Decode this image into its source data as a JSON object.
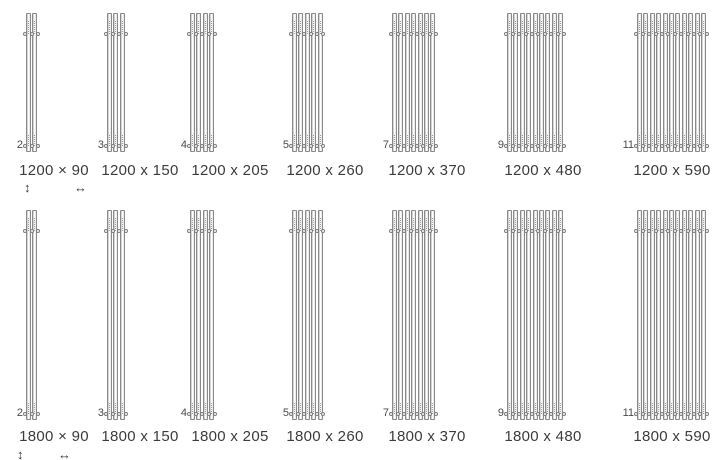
{
  "diagram": {
    "rows": [
      {
        "height_mm": "1200",
        "dimension_arrows": {
          "vertical_arrow": "↕",
          "horizontal_arrow": "↔"
        },
        "variants": [
          {
            "tube_count": "2",
            "size_label": "1200 × 90"
          },
          {
            "tube_count": "3",
            "size_label": "1200 x 150"
          },
          {
            "tube_count": "4",
            "size_label": "1200 x 205"
          },
          {
            "tube_count": "5",
            "size_label": "1200 x 260"
          },
          {
            "tube_count": "7",
            "size_label": "1200 x 370"
          },
          {
            "tube_count": "9",
            "size_label": "1200 x 480"
          },
          {
            "tube_count": "11",
            "size_label": "1200 x 590"
          }
        ]
      },
      {
        "height_mm": "1800",
        "dimension_arrows": {
          "vertical_arrow": "↕",
          "horizontal_arrow": "↔"
        },
        "variants": [
          {
            "tube_count": "2",
            "size_label": "1800 × 90"
          },
          {
            "tube_count": "3",
            "size_label": "1800 x 150"
          },
          {
            "tube_count": "4",
            "size_label": "1800 x 205"
          },
          {
            "tube_count": "5",
            "size_label": "1800 x 260"
          },
          {
            "tube_count": "7",
            "size_label": "1800 x 370"
          },
          {
            "tube_count": "9",
            "size_label": "1800 x 480"
          },
          {
            "tube_count": "11",
            "size_label": "1800 x 590"
          }
        ]
      }
    ],
    "colors": {
      "background": "#ffffff",
      "tube_outline": "#8a8a8a",
      "tube_inner_line": "#d4d4d4",
      "label_text": "#3c3c3c",
      "count_text": "#4a4a4a"
    }
  }
}
